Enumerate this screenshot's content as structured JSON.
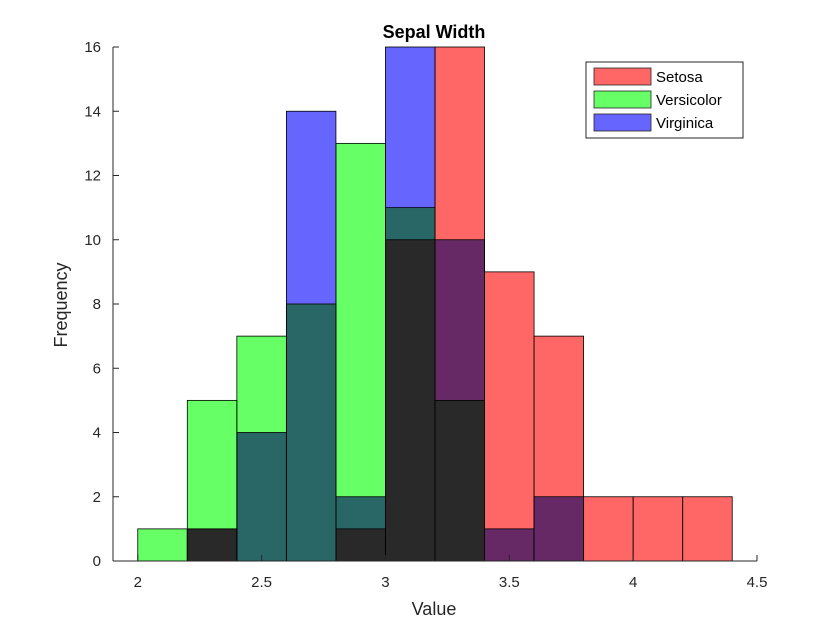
{
  "chart_data": {
    "type": "bar",
    "title": "Sepal Width",
    "xlabel": "Value",
    "ylabel": "Frequency",
    "xlim": [
      1.9,
      4.5
    ],
    "ylim": [
      0,
      16
    ],
    "xticks": [
      2,
      2.5,
      3,
      3.5,
      4,
      4.5
    ],
    "xtick_labels": [
      "2",
      "2.5",
      "3",
      "3.5",
      "4",
      "4.5"
    ],
    "yticks": [
      0,
      2,
      4,
      6,
      8,
      10,
      12,
      14,
      16
    ],
    "ytick_labels": [
      "0",
      "2",
      "4",
      "6",
      "8",
      "10",
      "12",
      "14",
      "16"
    ],
    "bin_edges": [
      2.0,
      2.2,
      2.4,
      2.6,
      2.8,
      3.0,
      3.2,
      3.4,
      3.6,
      3.8,
      4.0,
      4.2,
      4.4
    ],
    "grid": false,
    "legend_position": "top-right",
    "series": [
      {
        "name": "Setosa",
        "color": "#FF6666",
        "values": [
          0,
          1,
          0,
          0,
          1,
          10,
          16,
          9,
          7,
          2,
          2,
          2
        ]
      },
      {
        "name": "Versicolor",
        "color": "#66FF66",
        "values": [
          1,
          5,
          7,
          8,
          13,
          11,
          5,
          0,
          0,
          0,
          0,
          0
        ]
      },
      {
        "name": "Virginica",
        "color": "#6666FF",
        "values": [
          0,
          1,
          4,
          14,
          2,
          16,
          10,
          1,
          2,
          0,
          0,
          0
        ]
      }
    ]
  }
}
